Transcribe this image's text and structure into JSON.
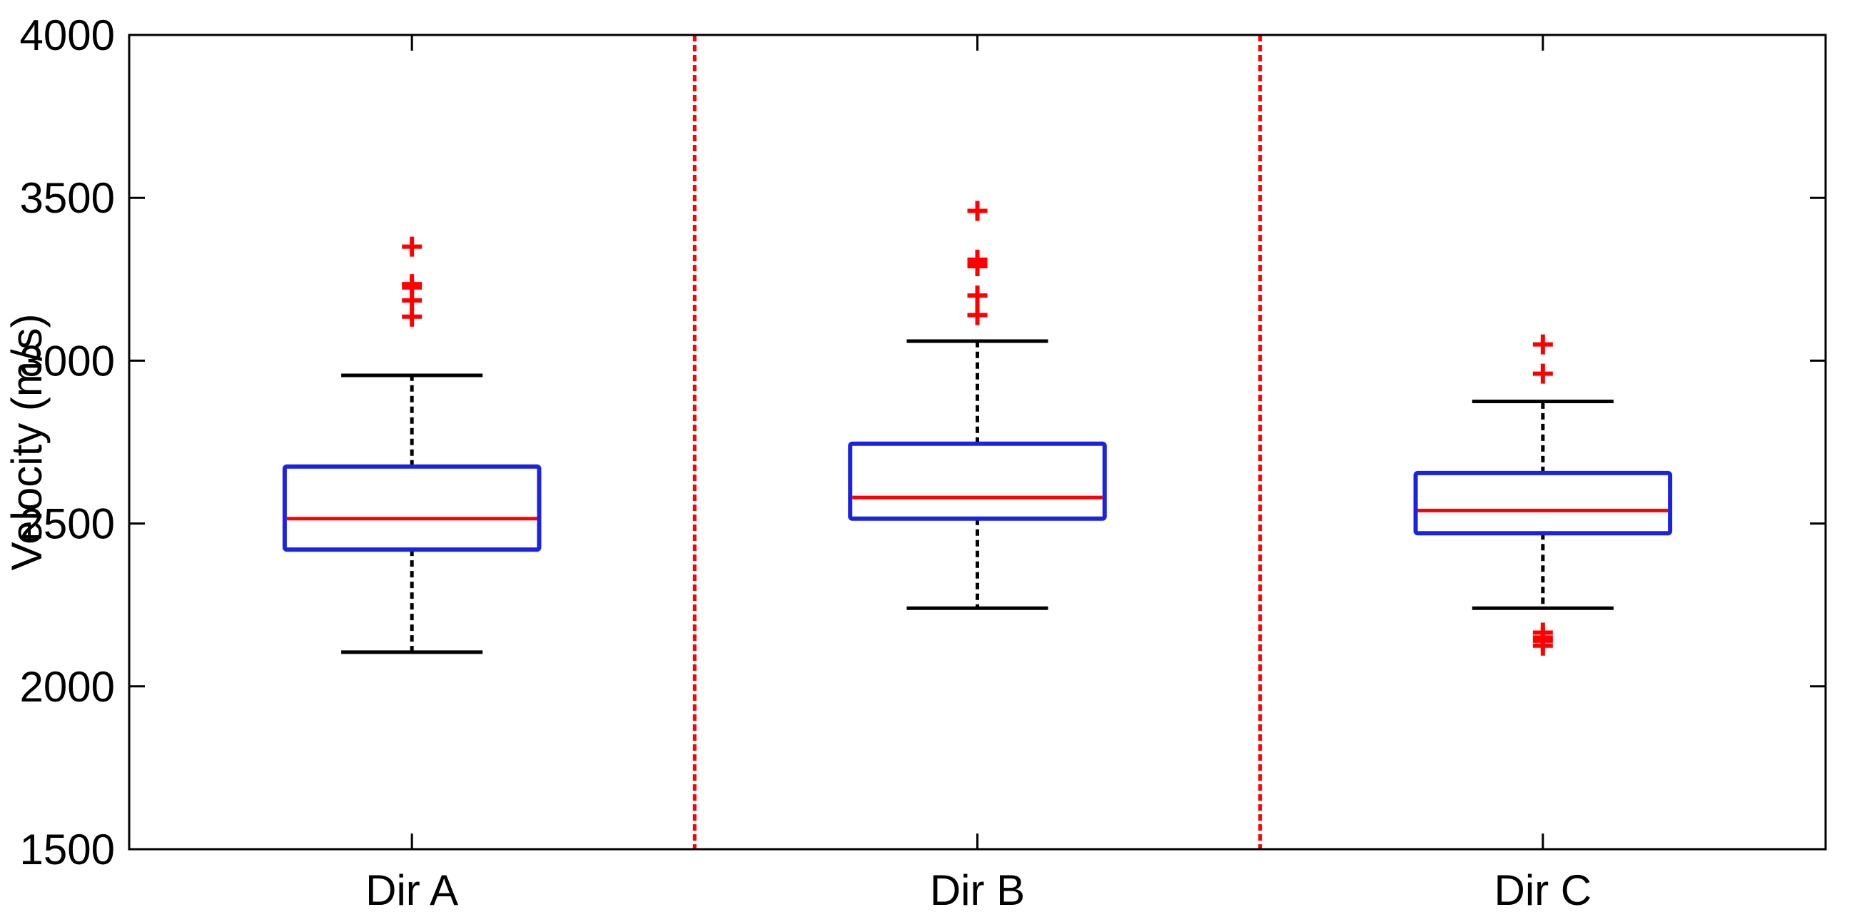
{
  "chart_data": {
    "type": "box",
    "title": "",
    "xlabel": "",
    "ylabel": "Velocity (m/s)",
    "ylim": [
      1500,
      4000
    ],
    "yticks": [
      "1500",
      "2000",
      "2500",
      "3000",
      "3500",
      "4000"
    ],
    "grid": false,
    "legend": "none",
    "categories": [
      "Dir A",
      "Dir B",
      "Dir C"
    ],
    "boxes": [
      {
        "category": "Dir A",
        "whisker_low": 2105,
        "q1": 2420,
        "median": 2515,
        "q3": 2675,
        "whisker_high": 2955,
        "outliers": [
          3135,
          3185,
          3225,
          3235,
          3350
        ]
      },
      {
        "category": "Dir B",
        "whisker_low": 2240,
        "q1": 2515,
        "median": 2580,
        "q3": 2745,
        "whisker_high": 3060,
        "outliers": [
          3140,
          3200,
          3290,
          3300,
          3310,
          3460
        ]
      },
      {
        "category": "Dir C",
        "whisker_low": 2240,
        "q1": 2470,
        "median": 2540,
        "q3": 2655,
        "whisker_high": 2875,
        "outliers": [
          2125,
          2140,
          2150,
          2165,
          2960,
          3050
        ]
      }
    ],
    "colors": {
      "box": "#1a22e6",
      "median": "#ff0000",
      "whisker": "#000000",
      "outlier": "#ff0000",
      "separator": "#ff0000"
    }
  }
}
